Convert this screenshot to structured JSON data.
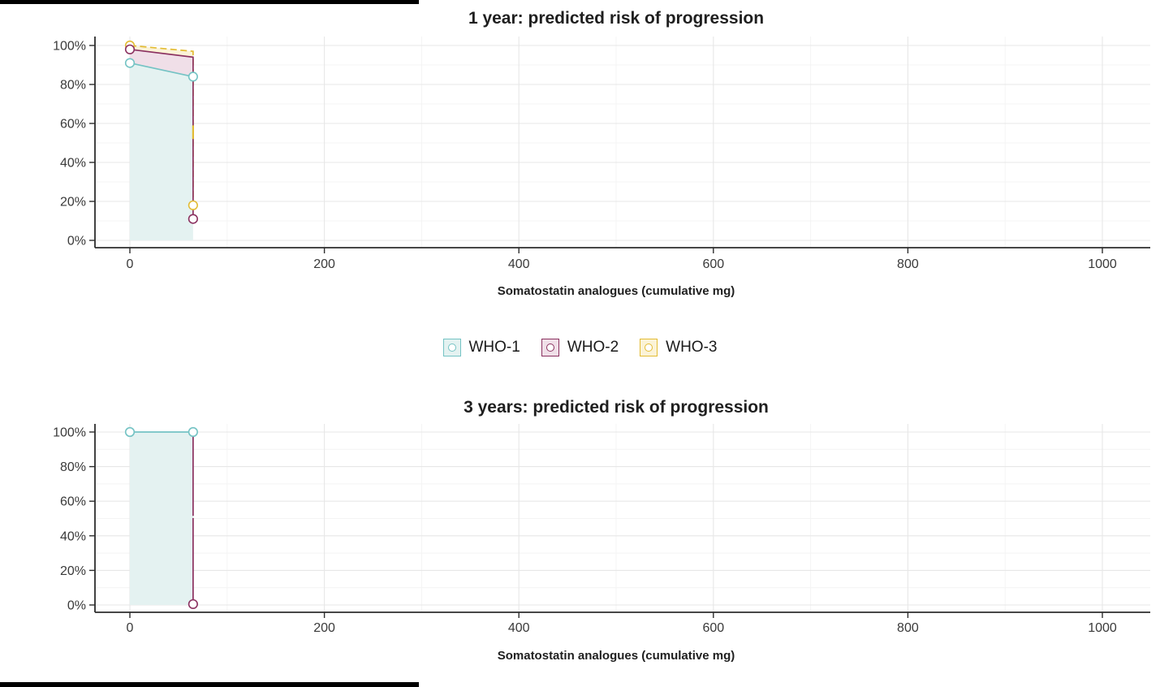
{
  "page": {
    "background": "#ffffff",
    "edge_bar_color": "#000000"
  },
  "legend": {
    "items": [
      {
        "label": "WHO-1",
        "color": "#74c3c4",
        "fill": "#e4f2f1"
      },
      {
        "label": "WHO-2",
        "color": "#8b3160",
        "fill": "#f0dfe8"
      },
      {
        "label": "WHO-3",
        "color": "#e3bc34",
        "fill": "#fbf3d7"
      }
    ]
  },
  "chart_data": [
    {
      "type": "area",
      "title": "1 year: predicted risk of progression",
      "xlabel": "Somatostatin analogues (cumulative mg)",
      "ylabel": "",
      "xlim": [
        -36,
        1049
      ],
      "ylim": [
        0,
        100
      ],
      "x_ticks": [
        0,
        200,
        400,
        600,
        800,
        1000
      ],
      "x_tick_labels": [
        "0",
        "200",
        "400",
        "600",
        "800",
        "1000"
      ],
      "x_minor_ticks": [
        100,
        300,
        500,
        700,
        900
      ],
      "y_ticks": [
        0,
        20,
        40,
        60,
        80,
        100
      ],
      "y_tick_labels": [
        "0%",
        "20%",
        "40%",
        "60%",
        "80%",
        "100%"
      ],
      "y_minor_ticks": [
        10,
        30,
        50,
        70,
        90
      ],
      "grid": true,
      "legend_position": "below",
      "series": [
        {
          "name": "WHO-1",
          "color": "#74c3c4",
          "fill": "#e4f2f1",
          "dashed": false,
          "line": [
            [
              0,
              91
            ],
            [
              65,
              84
            ]
          ],
          "area": [
            [
              0,
              0
            ],
            [
              0,
              91
            ],
            [
              65,
              84
            ],
            [
              65,
              0
            ]
          ],
          "markers": [
            [
              0,
              91
            ],
            [
              65,
              84
            ]
          ]
        },
        {
          "name": "WHO-2",
          "color": "#8b3160",
          "fill": "#f0dfe8",
          "dashed": false,
          "line": [
            [
              0,
              98
            ],
            [
              65,
              94
            ],
            [
              65,
              11
            ]
          ],
          "area": [
            [
              0,
              91
            ],
            [
              0,
              98
            ],
            [
              65,
              94
            ],
            [
              65,
              84
            ]
          ],
          "markers": [
            [
              0,
              98
            ],
            [
              65,
              11
            ]
          ]
        },
        {
          "name": "WHO-3",
          "color": "#e3bc34",
          "fill": "#fbf3d7",
          "dashed": true,
          "line": [
            [
              0,
              100
            ],
            [
              65,
              97
            ],
            [
              65,
              18
            ]
          ],
          "area": [
            [
              0,
              98
            ],
            [
              0,
              100
            ],
            [
              65,
              97
            ],
            [
              65,
              94
            ]
          ],
          "markers": [
            [
              0,
              100
            ],
            [
              65,
              18
            ]
          ],
          "overlay": [
            [
              65,
              59
            ],
            [
              65,
              52
            ]
          ]
        }
      ]
    },
    {
      "type": "area",
      "title": "3 years: predicted risk of progression",
      "xlabel": "Somatostatin analogues (cumulative mg)",
      "ylabel": "",
      "xlim": [
        -36,
        1049
      ],
      "ylim": [
        0,
        100
      ],
      "x_ticks": [
        0,
        200,
        400,
        600,
        800,
        1000
      ],
      "x_tick_labels": [
        "0",
        "200",
        "400",
        "600",
        "800",
        "1000"
      ],
      "x_minor_ticks": [
        100,
        300,
        500,
        700,
        900
      ],
      "y_ticks": [
        0,
        20,
        40,
        60,
        80,
        100
      ],
      "y_tick_labels": [
        "0%",
        "20%",
        "40%",
        "60%",
        "80%",
        "100%"
      ],
      "y_minor_ticks": [
        10,
        30,
        50,
        70,
        90
      ],
      "grid": true,
      "series": [
        {
          "name": "WHO-1",
          "color": "#74c3c4",
          "fill": "#e4f2f1",
          "dashed": false,
          "line": [
            [
              0,
              100
            ],
            [
              65,
              100
            ]
          ],
          "area": [
            [
              0,
              0
            ],
            [
              0,
              100
            ],
            [
              65,
              100
            ],
            [
              65,
              0
            ]
          ],
          "markers": [
            [
              0,
              100
            ],
            [
              65,
              100
            ]
          ]
        },
        {
          "name": "WHO-2",
          "color": "#8b3160",
          "fill": "none",
          "dashed": false,
          "segments": [
            [
              [
                65,
                100
              ],
              [
                65,
                51.5
              ]
            ],
            [
              [
                65,
                50.3
              ],
              [
                65,
                0.5
              ]
            ]
          ],
          "markers": [
            [
              65,
              0.5
            ]
          ]
        }
      ]
    }
  ]
}
